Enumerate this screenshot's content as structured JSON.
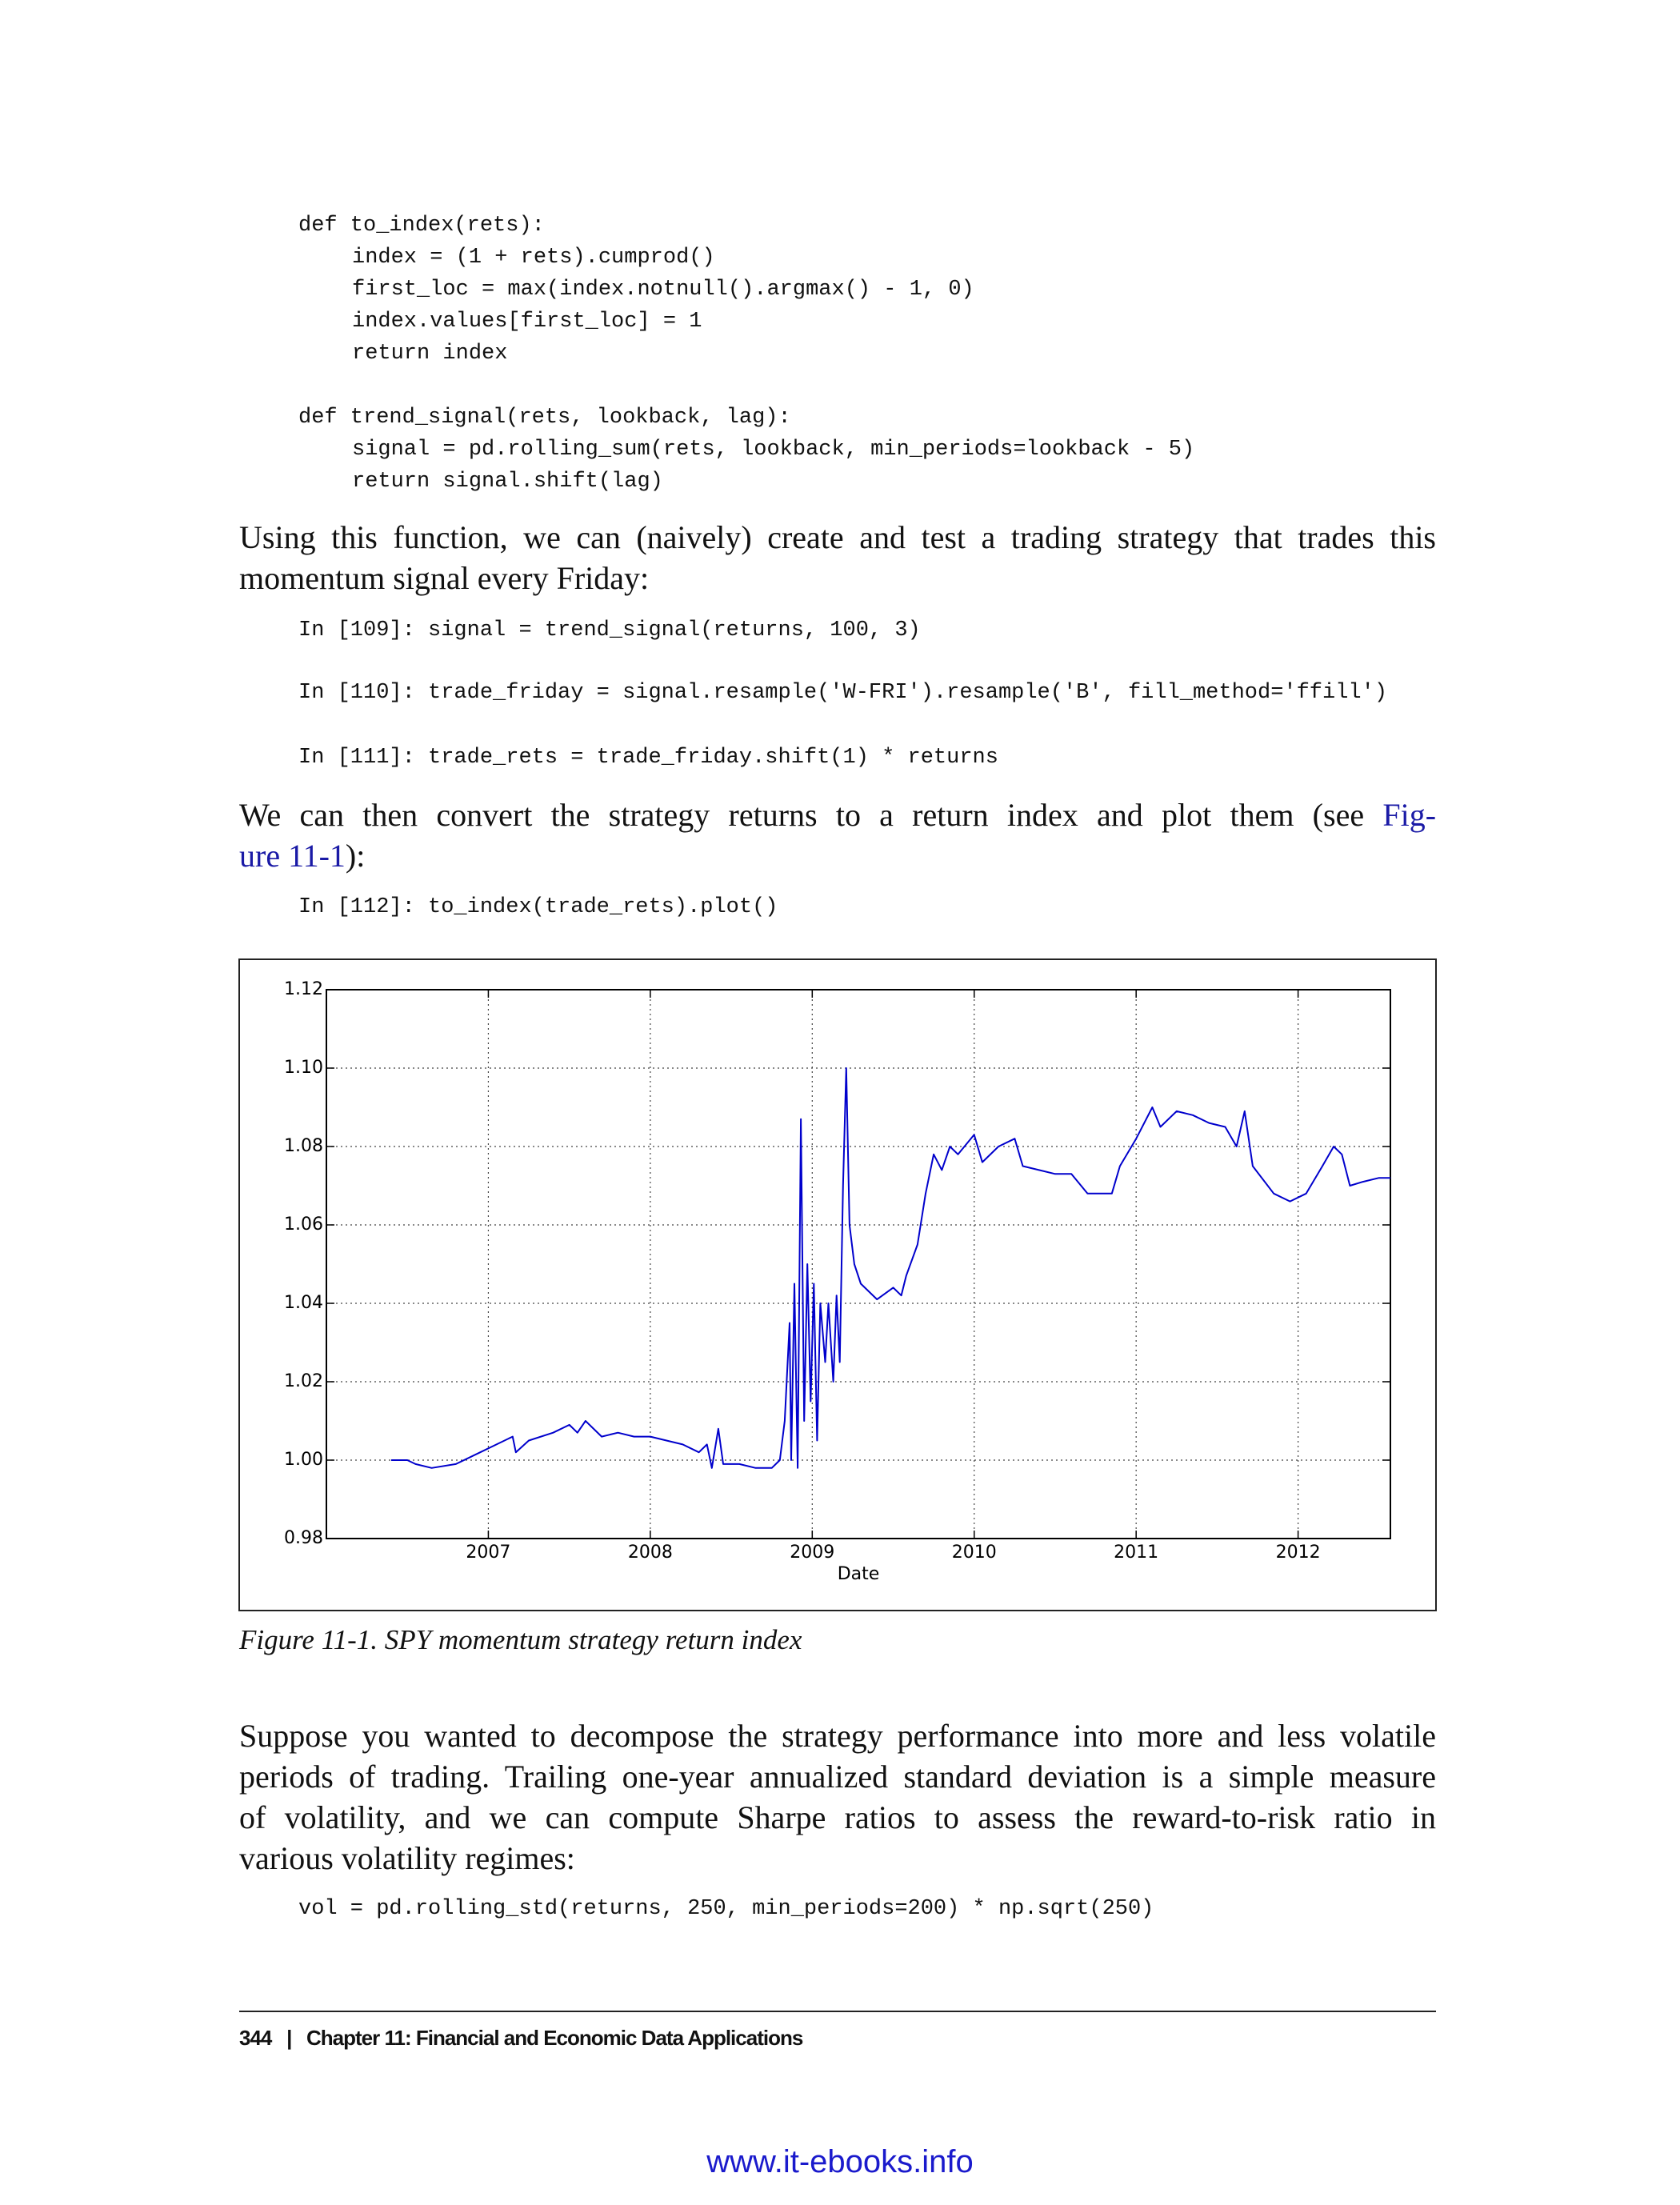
{
  "code_1": {
    "lines": [
      "def to_index(rets):",
      "index = (1 + rets).cumprod()",
      "first_loc = max(index.notnull().argmax() - 1, 0)",
      "index.values[first_loc] = 1",
      "return index",
      "def trend_signal(rets, lookback, lag):",
      "signal = pd.rolling_sum(rets, lookback, min_periods=lookback - 5)",
      "return signal.shift(lag)"
    ]
  },
  "paragraph_1": {
    "lines": [
      "Using this function, we can (naively) create and test a trading strategy that trades this",
      "momentum signal every Friday:"
    ]
  },
  "code_2": {
    "lines": [
      "In [109]: signal = trend_signal(returns, 100, 3)",
      "In [110]: trade_friday = signal.resample('W-FRI').resample('B', fill_method='ffill')",
      "In [111]: trade_rets = trade_friday.shift(1) * returns"
    ]
  },
  "paragraph_2": {
    "line_1_text": "We can then convert the strategy returns to a return index and plot them (see",
    "line_1_link": "Fig-",
    "line_2_link": "ure 11-1",
    "line_2_text": "):"
  },
  "code_3": {
    "lines": [
      "In [112]: to_index(trade_rets).plot()"
    ]
  },
  "chart_data": {
    "type": "line",
    "xlabel": "Date",
    "color": "#0000cc",
    "grid": true,
    "x": [
      2006.4,
      2006.5,
      2006.55,
      2006.65,
      2006.8,
      2006.95,
      2007.05,
      2007.15,
      2007.17,
      2007.25,
      2007.4,
      2007.5,
      2007.55,
      2007.6,
      2007.7,
      2007.8,
      2007.9,
      2008.0,
      2008.1,
      2008.2,
      2008.3,
      2008.35,
      2008.38,
      2008.42,
      2008.45,
      2008.55,
      2008.65,
      2008.75,
      2008.8,
      2008.83,
      2008.86,
      2008.87,
      2008.89,
      2008.91,
      2008.93,
      2008.95,
      2008.97,
      2008.99,
      2009.01,
      2009.03,
      2009.05,
      2009.08,
      2009.1,
      2009.13,
      2009.15,
      2009.17,
      2009.19,
      2009.21,
      2009.23,
      2009.26,
      2009.3,
      2009.4,
      2009.5,
      2009.55,
      2009.58,
      2009.65,
      2009.7,
      2009.75,
      2009.8,
      2009.85,
      2009.9,
      2010.0,
      2010.05,
      2010.15,
      2010.25,
      2010.3,
      2010.4,
      2010.5,
      2010.6,
      2010.7,
      2010.85,
      2010.9,
      2011.0,
      2011.1,
      2011.15,
      2011.25,
      2011.35,
      2011.45,
      2011.55,
      2011.62,
      2011.67,
      2011.72,
      2011.85,
      2011.95,
      2012.05,
      2012.15,
      2012.22,
      2012.27,
      2012.32,
      2012.4,
      2012.5,
      2012.57
    ],
    "values": [
      1.0,
      1.0,
      0.999,
      0.998,
      0.999,
      1.002,
      1.004,
      1.006,
      1.002,
      1.005,
      1.007,
      1.009,
      1.007,
      1.01,
      1.006,
      1.007,
      1.006,
      1.006,
      1.005,
      1.004,
      1.002,
      1.004,
      0.998,
      1.008,
      0.999,
      0.999,
      0.998,
      0.998,
      1.0,
      1.01,
      1.035,
      1.0,
      1.045,
      0.998,
      1.087,
      1.01,
      1.05,
      1.015,
      1.045,
      1.005,
      1.04,
      1.025,
      1.04,
      1.02,
      1.042,
      1.025,
      1.07,
      1.1,
      1.06,
      1.05,
      1.045,
      1.041,
      1.044,
      1.042,
      1.047,
      1.055,
      1.068,
      1.078,
      1.074,
      1.08,
      1.078,
      1.083,
      1.076,
      1.08,
      1.082,
      1.075,
      1.074,
      1.073,
      1.073,
      1.068,
      1.068,
      1.075,
      1.082,
      1.09,
      1.085,
      1.089,
      1.088,
      1.086,
      1.085,
      1.08,
      1.089,
      1.075,
      1.068,
      1.066,
      1.068,
      1.075,
      1.08,
      1.078,
      1.07,
      1.071,
      1.072,
      1.072
    ],
    "xlim": [
      2006.0,
      2012.57
    ],
    "xticks": [
      2007,
      2008,
      2009,
      2010,
      2011,
      2012
    ],
    "ylim": [
      0.98,
      1.12
    ],
    "yticks": [
      0.98,
      {
        "value": 1.0,
        "label": "1.00"
      },
      1.02,
      1.04,
      1.06,
      1.08,
      {
        "value": 1.1,
        "label": "1.10"
      },
      1.12
    ]
  },
  "caption": "Figure 11-1. SPY momentum strategy return index",
  "paragraph_3": {
    "lines": [
      "Suppose you wanted to decompose the strategy performance into more and less volatile",
      "periods of trading. Trailing one-year annualized standard deviation is a simple measure",
      "of volatility, and we can compute Sharpe ratios to assess the reward-to-risk ratio in",
      "various volatility regimes:"
    ]
  },
  "code_4": {
    "lines": [
      "vol = pd.rolling_std(returns, 250, min_periods=200) * np.sqrt(250)"
    ]
  },
  "footer": {
    "page_number": "344",
    "separator": "|",
    "chapter": "Chapter 11: Financial and Economic Data Applications"
  },
  "watermark": "www.it-ebooks.info"
}
